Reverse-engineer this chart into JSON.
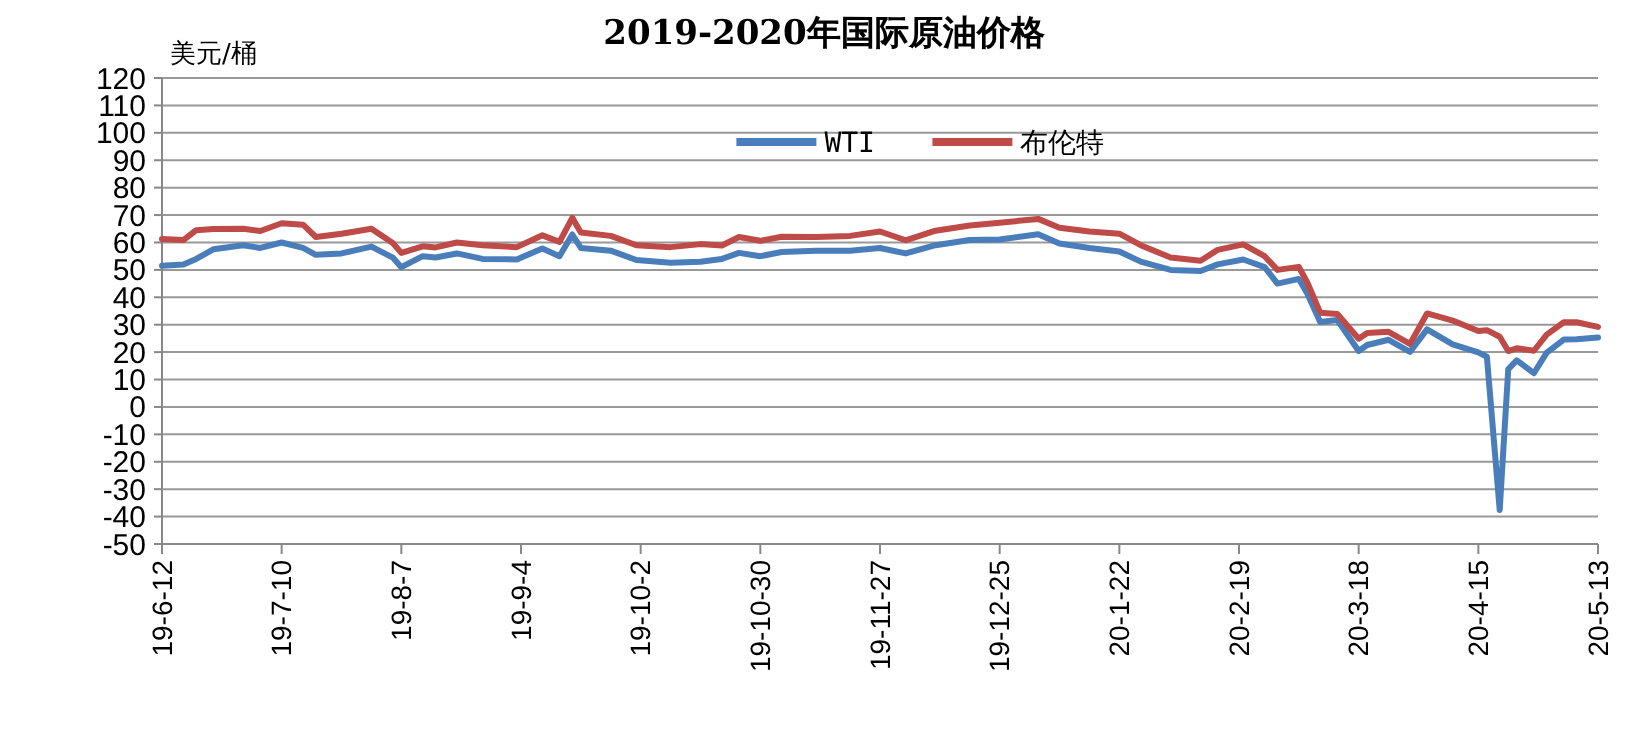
{
  "chart_data": {
    "type": "line",
    "title": "2019-2020年国际原油价格",
    "ylabel": "美元/桶",
    "x": [
      "2019-06-12",
      "2019-06-17",
      "2019-06-20",
      "2019-06-24",
      "2019-07-01",
      "2019-07-05",
      "2019-07-10",
      "2019-07-15",
      "2019-07-18",
      "2019-07-24",
      "2019-07-31",
      "2019-08-05",
      "2019-08-07",
      "2019-08-12",
      "2019-08-15",
      "2019-08-20",
      "2019-08-26",
      "2019-09-03",
      "2019-09-09",
      "2019-09-13",
      "2019-09-16",
      "2019-09-18",
      "2019-09-25",
      "2019-10-01",
      "2019-10-09",
      "2019-10-16",
      "2019-10-21",
      "2019-10-25",
      "2019-10-30",
      "2019-11-04",
      "2019-11-12",
      "2019-11-20",
      "2019-11-27",
      "2019-12-03",
      "2019-12-10",
      "2019-12-18",
      "2019-12-25",
      "2020-01-03",
      "2020-01-08",
      "2020-01-15",
      "2020-01-22",
      "2020-01-27",
      "2020-02-03",
      "2020-02-10",
      "2020-02-14",
      "2020-02-20",
      "2020-02-25",
      "2020-02-28",
      "2020-03-04",
      "2020-03-06",
      "2020-03-09",
      "2020-03-13",
      "2020-03-18",
      "2020-03-20",
      "2020-03-25",
      "2020-03-30",
      "2020-04-03",
      "2020-04-09",
      "2020-04-15",
      "2020-04-17",
      "2020-04-20",
      "2020-04-22",
      "2020-04-24",
      "2020-04-28",
      "2020-05-01",
      "2020-05-05",
      "2020-05-08",
      "2020-05-13"
    ],
    "series": [
      {
        "name": "WTI",
        "color": "#4a7ebb",
        "values": [
          51.5,
          52,
          54,
          57.5,
          59,
          58,
          60,
          58,
          55.5,
          56,
          58.5,
          54.5,
          51,
          55,
          54.5,
          56,
          54,
          53.8,
          57.8,
          55,
          62.9,
          58,
          57,
          53.6,
          52.6,
          53,
          54,
          56.2,
          55,
          56.5,
          57,
          57,
          58,
          56,
          59,
          60.9,
          61.1,
          63,
          59.6,
          58,
          56.7,
          53,
          50,
          49.6,
          52,
          53.8,
          51,
          45,
          46.7,
          41.3,
          31,
          31.7,
          20.4,
          22.6,
          24.5,
          20.1,
          28.3,
          22.8,
          19.9,
          18.3,
          -37.6,
          13.8,
          17,
          12.3,
          19.8,
          24.6,
          24.7,
          25.3
        ]
      },
      {
        "name": "布伦特",
        "color": "#be4b48",
        "values": [
          61.3,
          60.9,
          64.5,
          64.9,
          65,
          64.2,
          67,
          66.5,
          62,
          63.2,
          65,
          59.8,
          56.2,
          58.6,
          58.2,
          60,
          59,
          58.3,
          62.6,
          60.2,
          69,
          63.6,
          62.4,
          59,
          58.3,
          59.4,
          58.9,
          62,
          60.6,
          62.1,
          62,
          62.4,
          64,
          60.8,
          64.3,
          66.2,
          67.2,
          68.6,
          65.4,
          64,
          63.2,
          59,
          54.5,
          53.3,
          57.3,
          59.3,
          55,
          50,
          51.1,
          45.3,
          34.4,
          33.9,
          24.9,
          27,
          27.4,
          23,
          34.1,
          31.5,
          27.7,
          28,
          25.6,
          20.4,
          21.4,
          20.5,
          26.4,
          30.9,
          30.9,
          29.2
        ]
      }
    ],
    "xlim": [
      "2019-06-12",
      "2020-05-13"
    ],
    "xticks": [
      {
        "value": "2019-06-12",
        "label": "19-6-12"
      },
      {
        "value": "2019-07-10",
        "label": "19-7-10"
      },
      {
        "value": "2019-08-07",
        "label": "19-8-7"
      },
      {
        "value": "2019-09-04",
        "label": "19-9-4"
      },
      {
        "value": "2019-10-02",
        "label": "19-10-2"
      },
      {
        "value": "2019-10-30",
        "label": "19-10-30"
      },
      {
        "value": "2019-11-27",
        "label": "19-11-27"
      },
      {
        "value": "2019-12-25",
        "label": "19-12-25"
      },
      {
        "value": "2020-01-22",
        "label": "20-1-22"
      },
      {
        "value": "2020-02-19",
        "label": "20-2-19"
      },
      {
        "value": "2020-03-18",
        "label": "20-3-18"
      },
      {
        "value": "2020-04-15",
        "label": "20-4-15"
      },
      {
        "value": "2020-05-13",
        "label": "20-5-13"
      }
    ],
    "ylim": [
      -50,
      120
    ],
    "yticks": [
      -50,
      -40,
      -30,
      -20,
      -10,
      0,
      10,
      20,
      30,
      40,
      50,
      60,
      70,
      80,
      90,
      100,
      110,
      120
    ],
    "grid": "y",
    "legend": "top",
    "marker": "none",
    "line_style": "solid"
  }
}
